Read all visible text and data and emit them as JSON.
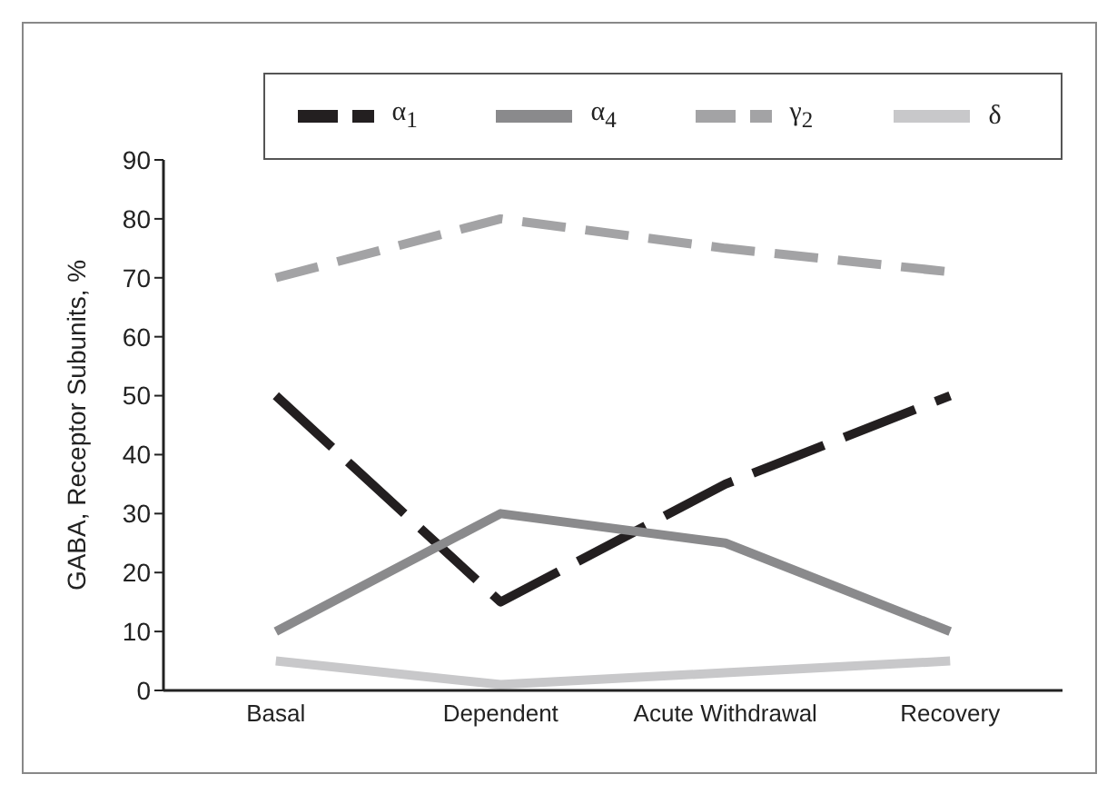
{
  "chart_data": {
    "type": "line",
    "categories": [
      "Basal",
      "Dependent",
      "Acute Withdrawal",
      "Recovery"
    ],
    "ylabel": "GABA, Receptor Subunits, %",
    "ylim": [
      0,
      90
    ],
    "yticks": [
      0,
      10,
      20,
      30,
      40,
      50,
      60,
      70,
      80,
      90
    ],
    "grid": false,
    "legend": "top",
    "marker": "none",
    "series": [
      {
        "name": "α$_{1}$",
        "color": "#231f20",
        "line_style": "dashed",
        "values": [
          50,
          15,
          35,
          50
        ]
      },
      {
        "name": "α$_{4}$",
        "color": "#8a8a8c",
        "line_style": "solid",
        "values": [
          10,
          30,
          25,
          10
        ]
      },
      {
        "name": "γ$_{2}$",
        "color": "#a3a3a5",
        "line_style": "dashed",
        "values": [
          70,
          80,
          75,
          71
        ]
      },
      {
        "name": "δ",
        "color": "#c8c8ca",
        "line_style": "solid",
        "values": [
          5,
          1,
          3,
          5
        ]
      }
    ]
  }
}
